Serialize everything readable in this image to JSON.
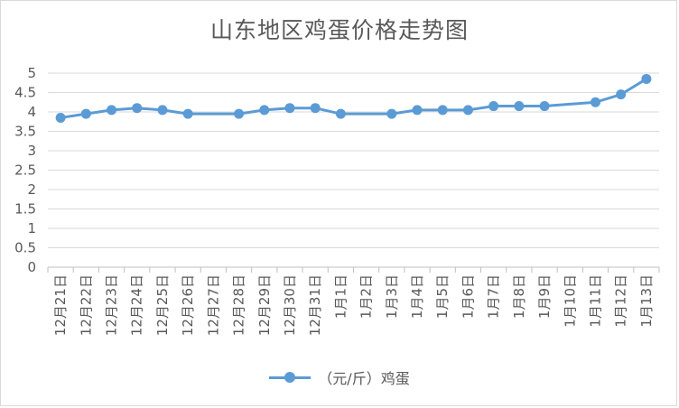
{
  "chart_data": {
    "type": "line",
    "title": "山东地区鸡蛋价格走势图",
    "xlabel": "",
    "ylabel": "",
    "ylim": [
      0,
      5
    ],
    "yticks": [
      "0",
      "0.5",
      "1",
      "1.5",
      "2",
      "2.5",
      "3",
      "3.5",
      "4",
      "4.5",
      "5"
    ],
    "grid": true,
    "legend_position": "bottom",
    "categories": [
      "12月21日",
      "12月22日",
      "12月23日",
      "12月24日",
      "12月25日",
      "12月26日",
      "12月27日",
      "12月28日",
      "12月29日",
      "12月30日",
      "12月31日",
      "1月1日",
      "1月2日",
      "1月3日",
      "1月4日",
      "1月5日",
      "1月6日",
      "1月7日",
      "1月8日",
      "1月9日",
      "1月10日",
      "1月11日",
      "1月12日",
      "1月13日"
    ],
    "series": [
      {
        "name": "（元/斤）鸡蛋",
        "color": "#5b9bd5",
        "values": [
          3.85,
          3.95,
          4.05,
          4.1,
          4.05,
          3.95,
          null,
          3.95,
          4.05,
          4.1,
          4.1,
          3.95,
          null,
          3.95,
          4.05,
          4.05,
          4.05,
          4.15,
          4.15,
          4.15,
          null,
          4.25,
          4.45,
          4.85
        ]
      }
    ]
  }
}
